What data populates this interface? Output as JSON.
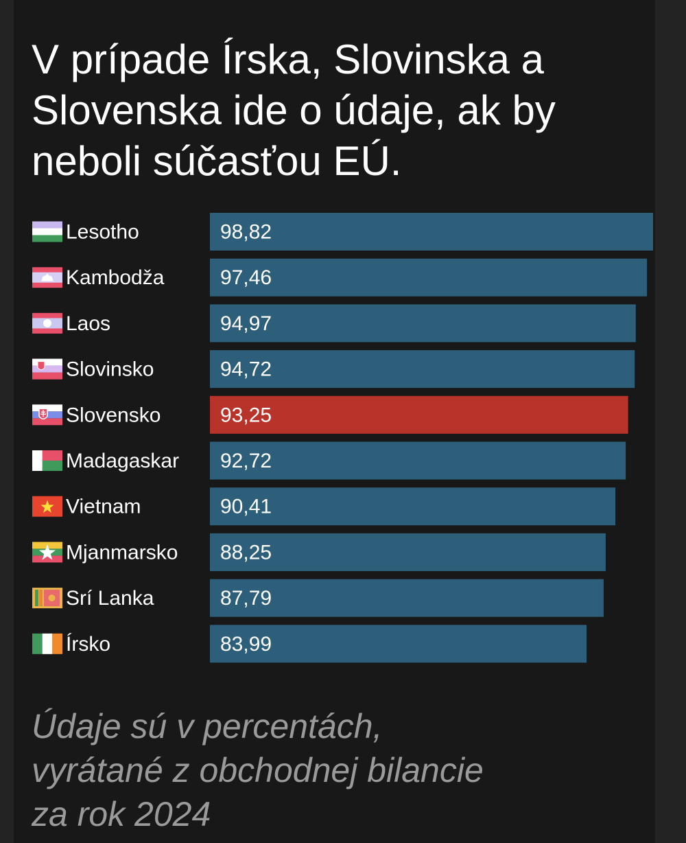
{
  "title": "V prípade Írska, Slovinska a Slovenska ide o údaje, ak by neboli súčasťou EÚ.",
  "footnote": "Údaje sú v percentách, vyrátané z obchodnej bilancie za rok 2024",
  "chart_data": {
    "type": "bar",
    "orientation": "horizontal",
    "categories": [
      "Lesotho",
      "Kambodža",
      "Laos",
      "Slovinsko",
      "Slovensko",
      "Madagaskar",
      "Vietnam",
      "Mjanmarsko",
      "Srí Lanka",
      "Írsko"
    ],
    "values": [
      98.82,
      97.46,
      94.97,
      94.72,
      93.25,
      92.72,
      90.41,
      88.25,
      87.79,
      83.99
    ],
    "value_labels": [
      "98,82",
      "97,46",
      "94,97",
      "94,72",
      "93,25",
      "92,72",
      "90,41",
      "88,25",
      "87,79",
      "83,99"
    ],
    "flags": [
      "lesotho-flag-icon",
      "cambodia-flag-icon",
      "laos-flag-icon",
      "slovenia-flag-icon",
      "slovakia-flag-icon",
      "madagascar-flag-icon",
      "vietnam-flag-icon",
      "myanmar-flag-icon",
      "sri-lanka-flag-icon",
      "ireland-flag-icon"
    ],
    "highlight": "Slovensko",
    "bar_color": "#2e5f7a",
    "highlight_color": "#b8342b",
    "xlim": [
      0,
      98.82
    ],
    "grid": false,
    "legend": "none"
  }
}
